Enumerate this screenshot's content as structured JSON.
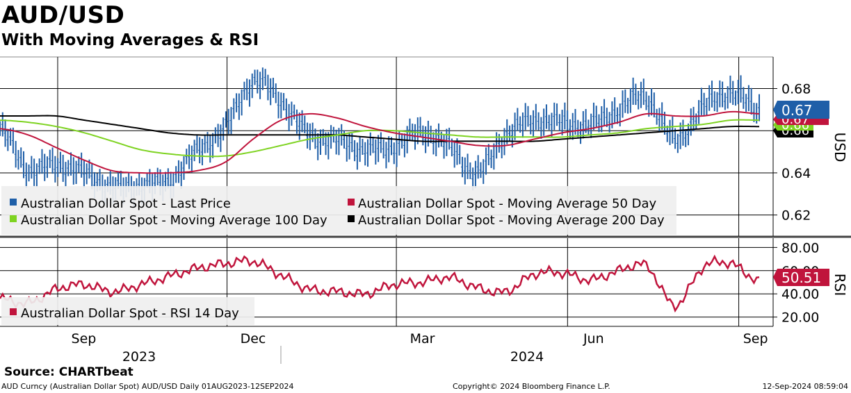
{
  "header": {
    "title": "AUD/USD",
    "subtitle": "With Moving Averages & RSI"
  },
  "footer": {
    "source": "Source: CHARTbeat",
    "left": "AUD Curncy (Australian Dollar Spot) AUD/USD  Daily 01AUG2023-12SEP2024",
    "middle": "Copyright© 2024 Bloomberg Finance L.P.",
    "right": "12-Sep-2024 08:59:04"
  },
  "colors": {
    "price": "#1f5fa8",
    "ma50": "#c0143c",
    "ma100": "#7ed321",
    "ma200": "#000000",
    "rsi": "#c0143c",
    "legend_bg": "#f0f0f0",
    "divider": "#444444"
  },
  "chart_data": [
    {
      "type": "line",
      "panel": "price",
      "title": "",
      "ylabel": "USD",
      "ylim": [
        0.61,
        0.695
      ],
      "yticks": [
        "0.68",
        "0.66",
        "0.64",
        "0.62"
      ],
      "x_month_labels": [
        "Sep",
        "Dec",
        "Mar",
        "Jun",
        "Sep"
      ],
      "x_year_labels": [
        "2023",
        "2024"
      ],
      "grid": true,
      "legend_position": "bottom-left",
      "x_dates": [
        "2023-08-01",
        "2023-08-15",
        "2023-09-01",
        "2023-09-15",
        "2023-10-01",
        "2023-10-15",
        "2023-11-01",
        "2023-11-15",
        "2023-12-01",
        "2023-12-15",
        "2024-01-01",
        "2024-01-15",
        "2024-02-01",
        "2024-02-15",
        "2024-03-01",
        "2024-03-15",
        "2024-04-01",
        "2024-04-15",
        "2024-05-01",
        "2024-05-15",
        "2024-06-01",
        "2024-06-15",
        "2024-07-01",
        "2024-07-15",
        "2024-08-01",
        "2024-08-15",
        "2024-09-01",
        "2024-09-12"
      ],
      "series": [
        {
          "name": "Australian Dollar Spot - Last Price",
          "values": [
            0.661,
            0.642,
            0.644,
            0.64,
            0.633,
            0.634,
            0.636,
            0.65,
            0.661,
            0.683,
            0.674,
            0.658,
            0.655,
            0.651,
            0.652,
            0.659,
            0.652,
            0.64,
            0.658,
            0.665,
            0.664,
            0.663,
            0.67,
            0.676,
            0.656,
            0.671,
            0.678,
            0.67
          ]
        },
        {
          "name": "Australian Dollar Spot - Moving Average 50 Day",
          "values": [
            0.661,
            0.658,
            0.652,
            0.646,
            0.641,
            0.64,
            0.64,
            0.641,
            0.645,
            0.656,
            0.665,
            0.668,
            0.666,
            0.662,
            0.659,
            0.657,
            0.655,
            0.653,
            0.653,
            0.656,
            0.659,
            0.661,
            0.664,
            0.668,
            0.667,
            0.667,
            0.669,
            0.668
          ]
        },
        {
          "name": "Australian Dollar Spot - Moving Average 100 Day",
          "values": [
            0.665,
            0.664,
            0.662,
            0.659,
            0.655,
            0.651,
            0.649,
            0.648,
            0.648,
            0.65,
            0.653,
            0.656,
            0.658,
            0.66,
            0.66,
            0.659,
            0.658,
            0.657,
            0.657,
            0.657,
            0.657,
            0.658,
            0.659,
            0.661,
            0.662,
            0.663,
            0.665,
            0.665
          ]
        },
        {
          "name": "Australian Dollar Spot - Moving Average 200 Day",
          "values": [
            0.667,
            0.667,
            0.667,
            0.665,
            0.663,
            0.661,
            0.659,
            0.658,
            0.658,
            0.658,
            0.658,
            0.658,
            0.658,
            0.657,
            0.656,
            0.655,
            0.655,
            0.655,
            0.655,
            0.655,
            0.656,
            0.657,
            0.658,
            0.659,
            0.66,
            0.661,
            0.662,
            0.662
          ]
        }
      ],
      "price_tags": [
        {
          "label": "0.67",
          "series": "Australian Dollar Spot - Last Price"
        },
        {
          "label": "0.67",
          "series": "Australian Dollar Spot - Moving Average 50 Day"
        },
        {
          "label": "0.66",
          "series": "Australian Dollar Spot - Moving Average 100 Day"
        },
        {
          "label": "0.66",
          "series": "Australian Dollar Spot - Moving Average 200 Day"
        }
      ]
    },
    {
      "type": "line",
      "panel": "rsi",
      "title": "",
      "ylabel": "RSI",
      "ylim": [
        12,
        88
      ],
      "yticks": [
        "80.00",
        "60.00",
        "40.00",
        "20.00"
      ],
      "grid": true,
      "legend_position": "bottom-left",
      "series": [
        {
          "name": "Australian Dollar Spot - RSI 14 Day",
          "values": [
            36,
            32,
            44,
            48,
            42,
            48,
            55,
            62,
            66,
            68,
            56,
            44,
            42,
            40,
            48,
            50,
            54,
            45,
            42,
            57,
            58,
            52,
            60,
            64,
            30,
            63,
            66,
            50.51
          ]
        }
      ],
      "last_value_tag": "50.51"
    }
  ]
}
